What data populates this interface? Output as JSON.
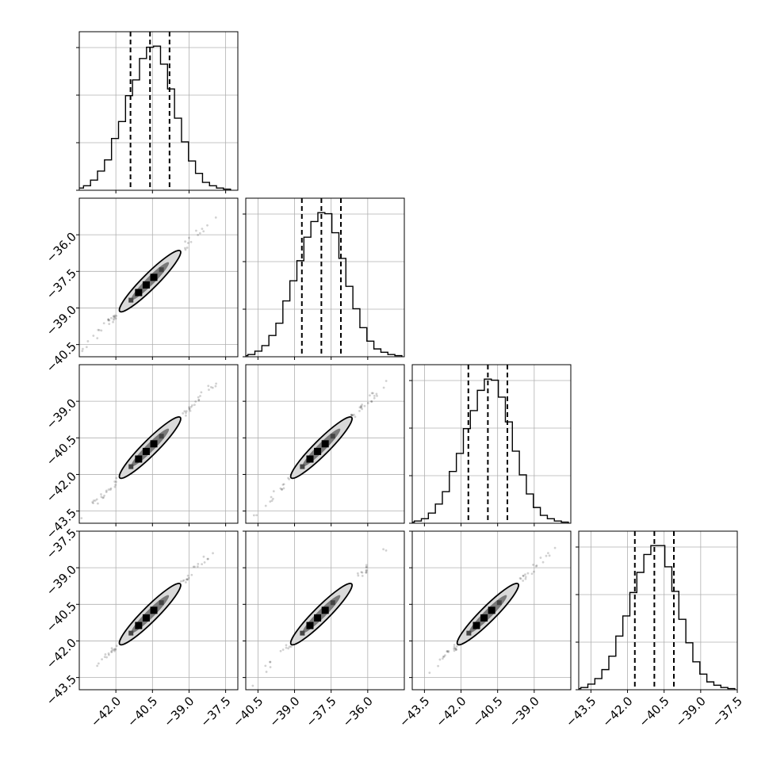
{
  "chart_data": {
    "type": "corner",
    "grid": true,
    "x_tick_labels": [
      [
        "−42.0",
        "−40.5",
        "−39.0",
        "−37.5"
      ],
      [
        "−40.5",
        "−39.0",
        "−37.5",
        "−36.0"
      ],
      [
        "−43.5",
        "−42.0",
        "−40.5",
        "−39.0"
      ],
      [
        "−43.5",
        "−42.0",
        "−40.5",
        "−39.0",
        "−37.5"
      ]
    ],
    "y_tick_labels": [
      [],
      [
        "−36.0",
        "−37.5",
        "−39.0",
        "−40.5"
      ],
      [
        "−39.0",
        "−40.5",
        "−42.0",
        "−43.5"
      ],
      [
        "−37.5",
        "−39.0",
        "−40.5",
        "−42.0",
        "−43.5"
      ]
    ],
    "parameters": [
      {
        "xlim": [
          -43.5,
          -37.0
        ],
        "x_ticks": [
          -42.0,
          -40.5,
          -39.0,
          -37.5
        ],
        "quantiles": [
          -41.4,
          -40.6,
          -39.8
        ],
        "hist_values": [
          1,
          2,
          4,
          9,
          17,
          27,
          46,
          61,
          84,
          98,
          117,
          127,
          128,
          112,
          90,
          64,
          43,
          26,
          15,
          7,
          4,
          2,
          1
        ]
      },
      {
        "xlim": [
          -41.0,
          -34.5
        ],
        "x_ticks": [
          -40.5,
          -39.0,
          -37.5,
          -36.0
        ],
        "y_ticks": [
          -36.0,
          -37.5,
          -39.0,
          -40.5
        ],
        "quantiles": [
          -38.7,
          -37.9,
          -37.1
        ],
        "hist_values": [
          1,
          2,
          5,
          10,
          19,
          30,
          50,
          68,
          86,
          107,
          121,
          129,
          128,
          111,
          88,
          63,
          43,
          26,
          14,
          7,
          4,
          2,
          1
        ]
      },
      {
        "xlim": [
          -44.0,
          -37.5
        ],
        "x_ticks": [
          -43.5,
          -42.0,
          -40.5,
          -39.0
        ],
        "y_ticks": [
          -39.0,
          -40.5,
          -42.0,
          -43.5
        ],
        "quantiles": [
          -41.7,
          -40.9,
          -40.1
        ],
        "hist_values": [
          1,
          2,
          4,
          9,
          17,
          28,
          46,
          62,
          84,
          100,
          118,
          128,
          127,
          112,
          90,
          64,
          43,
          26,
          14,
          7,
          4,
          2,
          1
        ]
      },
      {
        "xlim": [
          -44.0,
          -37.5
        ],
        "x_ticks": [
          -43.5,
          -42.0,
          -40.5,
          -39.0,
          -37.5
        ],
        "y_ticks": [
          -37.5,
          -39.0,
          -40.5,
          -42.0,
          -43.5
        ],
        "quantiles": [
          -41.7,
          -40.9,
          -40.1
        ],
        "hist_values": [
          1,
          2,
          5,
          10,
          18,
          30,
          48,
          66,
          87,
          105,
          121,
          129,
          129,
          110,
          88,
          63,
          42,
          25,
          14,
          7,
          4,
          2,
          1
        ]
      }
    ]
  }
}
